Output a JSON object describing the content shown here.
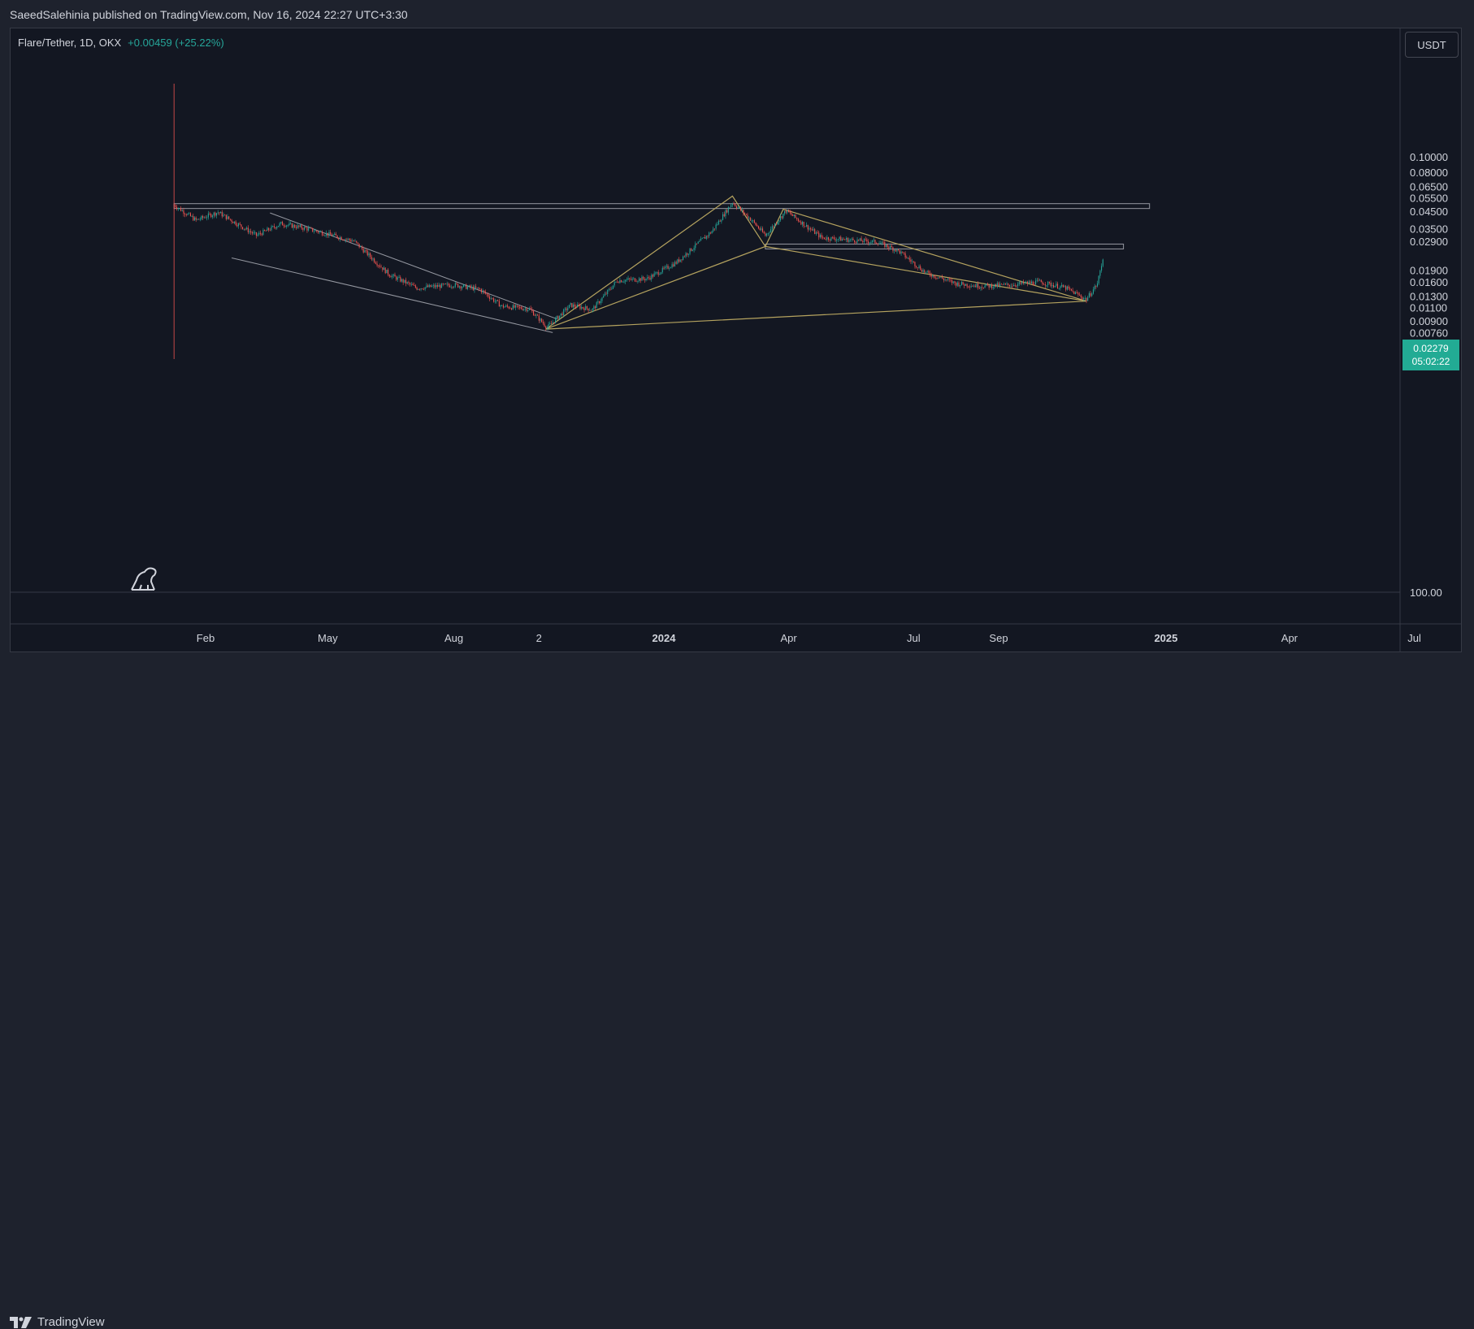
{
  "header": {
    "publish_text": "SaeedSalehinia published on TradingView.com, Nov 16, 2024 22:27 UTC+3:30"
  },
  "legend": {
    "symbol": "Flare/Tether, 1D, OKX",
    "change": "+0.00459 (+25.22%)"
  },
  "currency_button": "USDT",
  "price_label": {
    "price": "0.02279",
    "countdown": "05:02:22"
  },
  "footer": {
    "brand": "TradingView",
    "logo_icon": "tradingview-logo-icon"
  },
  "watermark_icon": "dinosaur-icon",
  "colors": {
    "background": "#131722",
    "up": "#26a69a",
    "down": "#ef5350",
    "pattern": "#b5a35f",
    "trendline": "#9598a1",
    "accent": "#22ab94"
  },
  "chart_data": {
    "type": "candlestick",
    "title": "",
    "y_scale": "log",
    "y_ticks": [
      "0.10000",
      "0.08000",
      "0.06500",
      "0.05500",
      "0.04500",
      "0.03500",
      "0.02900",
      "0.01900",
      "0.01600",
      "0.01300",
      "0.01100",
      "0.00900",
      "0.00760",
      "100.00"
    ],
    "x_ticks": [
      {
        "label": "Feb",
        "date": "2023-02-01",
        "bold": false
      },
      {
        "label": "May",
        "date": "2023-05-01",
        "bold": false
      },
      {
        "label": "Aug",
        "date": "2023-08-01",
        "bold": false
      },
      {
        "label": "2",
        "date": "2023-10-02",
        "bold": false
      },
      {
        "label": "2024",
        "date": "2024-01-01",
        "bold": true
      },
      {
        "label": "Apr",
        "date": "2024-04-01",
        "bold": false
      },
      {
        "label": "Jul",
        "date": "2024-07-01",
        "bold": false
      },
      {
        "label": "Sep",
        "date": "2024-09-01",
        "bold": false
      },
      {
        "label": "2025",
        "date": "2025-01-01",
        "bold": true
      },
      {
        "label": "Apr",
        "date": "2025-04-01",
        "bold": false
      },
      {
        "label": "Jul",
        "date": "2025-07-01",
        "bold": false
      }
    ],
    "price_keypoints": [
      {
        "date": "2023-01-09",
        "price": 0.05
      },
      {
        "date": "2023-01-25",
        "price": 0.04
      },
      {
        "date": "2023-02-10",
        "price": 0.045
      },
      {
        "date": "2023-03-10",
        "price": 0.032
      },
      {
        "date": "2023-03-28",
        "price": 0.038
      },
      {
        "date": "2023-04-15",
        "price": 0.0355
      },
      {
        "date": "2023-05-20",
        "price": 0.0295
      },
      {
        "date": "2023-06-15",
        "price": 0.018
      },
      {
        "date": "2023-07-05",
        "price": 0.0148
      },
      {
        "date": "2023-08-01",
        "price": 0.0155
      },
      {
        "date": "2023-08-20",
        "price": 0.0145
      },
      {
        "date": "2023-09-05",
        "price": 0.0113
      },
      {
        "date": "2023-09-25",
        "price": 0.0109
      },
      {
        "date": "2023-10-08",
        "price": 0.0083
      },
      {
        "date": "2023-10-25",
        "price": 0.0115
      },
      {
        "date": "2023-11-10",
        "price": 0.0108
      },
      {
        "date": "2023-11-28",
        "price": 0.0165
      },
      {
        "date": "2023-12-20",
        "price": 0.017
      },
      {
        "date": "2024-01-10",
        "price": 0.0215
      },
      {
        "date": "2024-02-05",
        "price": 0.034
      },
      {
        "date": "2024-02-20",
        "price": 0.052
      },
      {
        "date": "2024-03-05",
        "price": 0.04
      },
      {
        "date": "2024-03-15",
        "price": 0.032
      },
      {
        "date": "2024-03-30",
        "price": 0.046
      },
      {
        "date": "2024-04-25",
        "price": 0.031
      },
      {
        "date": "2024-06-05",
        "price": 0.029
      },
      {
        "date": "2024-06-20",
        "price": 0.0255
      },
      {
        "date": "2024-07-10",
        "price": 0.0185
      },
      {
        "date": "2024-08-01",
        "price": 0.0158
      },
      {
        "date": "2024-08-20",
        "price": 0.0152
      },
      {
        "date": "2024-09-10",
        "price": 0.0155
      },
      {
        "date": "2024-10-01",
        "price": 0.0162
      },
      {
        "date": "2024-10-20",
        "price": 0.0148
      },
      {
        "date": "2024-11-04",
        "price": 0.0125
      },
      {
        "date": "2024-11-12",
        "price": 0.0158
      },
      {
        "date": "2024-11-16",
        "price": 0.02279
      }
    ],
    "annotations": {
      "resistance_zone": {
        "from": "2023-01-09",
        "to": "2024-12-20",
        "low": 0.0475,
        "high": 0.051
      },
      "support_line": {
        "from": "2024-03-15",
        "to": "2024-12-01",
        "price": 0.0272
      },
      "descending_channel": [
        {
          "from": {
            "date": "2023-03-20",
            "price": 0.0445
          },
          "to": {
            "date": "2023-10-15",
            "price": 0.0094
          }
        },
        {
          "from": {
            "date": "2023-02-20",
            "price": 0.023
          },
          "to": {
            "date": "2023-10-12",
            "price": 0.0077
          }
        }
      ],
      "harmonic_pattern": [
        {
          "date": "2023-10-07",
          "price": 0.0081
        },
        {
          "date": "2024-02-20",
          "price": 0.057
        },
        {
          "date": "2024-03-15",
          "price": 0.0272
        },
        {
          "date": "2024-03-28",
          "price": 0.047
        },
        {
          "date": "2024-11-04",
          "price": 0.0122
        },
        {
          "date": "2023-10-07",
          "price": 0.0081
        },
        {
          "date": "2024-03-15",
          "price": 0.0272
        },
        {
          "date": "2024-11-04",
          "price": 0.0122
        },
        {
          "date": "2024-03-28",
          "price": 0.047
        }
      ]
    }
  }
}
